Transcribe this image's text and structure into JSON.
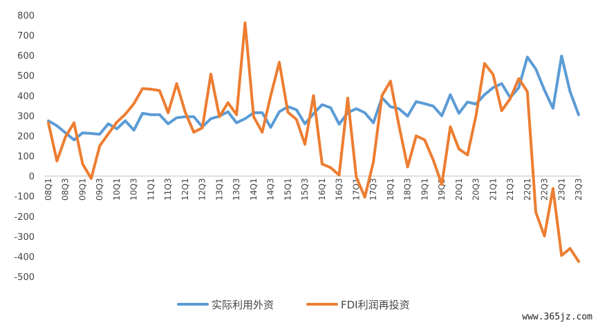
{
  "chart_data": {
    "type": "line",
    "ylim": [
      -500,
      800
    ],
    "yticks": [
      800,
      700,
      600,
      500,
      400,
      300,
      200,
      100,
      0,
      -100,
      -200,
      -300,
      -400,
      -500
    ],
    "grid": false,
    "legend_position": "bottom-center",
    "x": [
      "08Q1",
      "08Q2",
      "08Q3",
      "08Q4",
      "09Q1",
      "09Q2",
      "09Q3",
      "09Q4",
      "10Q1",
      "10Q2",
      "10Q3",
      "10Q4",
      "11Q1",
      "11Q2",
      "11Q3",
      "11Q4",
      "12Q1",
      "12Q2",
      "12Q3",
      "12Q4",
      "13Q1",
      "13Q2",
      "13Q3",
      "13Q4",
      "14Q1",
      "14Q2",
      "14Q3",
      "14Q4",
      "15Q1",
      "15Q2",
      "15Q3",
      "15Q4",
      "16Q1",
      "16Q2",
      "16Q3",
      "16Q4",
      "17Q1",
      "17Q2",
      "17Q3",
      "17Q4",
      "18Q1",
      "18Q2",
      "18Q3",
      "18Q4",
      "19Q1",
      "19Q2",
      "19Q3",
      "19Q4",
      "20Q1",
      "20Q2",
      "20Q3",
      "20Q4",
      "21Q1",
      "21Q2",
      "21Q3",
      "21Q4",
      "22Q1",
      "22Q2",
      "22Q3",
      "22Q4",
      "23Q1",
      "23Q2",
      "23Q3"
    ],
    "tick_labels": [
      "08Q1",
      "08Q3",
      "09Q1",
      "09Q3",
      "10Q1",
      "10Q3",
      "11Q1",
      "11Q3",
      "12Q1",
      "12Q3",
      "13Q1",
      "13Q3",
      "14Q1",
      "14Q3",
      "15Q1",
      "15Q3",
      "16Q1",
      "16Q3",
      "17Q1",
      "17Q3",
      "18Q1",
      "18Q3",
      "19Q1",
      "19Q3",
      "20Q1",
      "20Q3",
      "21Q1",
      "21Q3",
      "22Q1",
      "22Q3",
      "23Q1",
      "23Q3"
    ],
    "series": [
      {
        "name": "实际利用外资",
        "color": "#5B9BD5",
        "values": [
          275,
          250,
          215,
          180,
          215,
          212,
          208,
          260,
          235,
          275,
          228,
          312,
          305,
          305,
          260,
          290,
          295,
          295,
          245,
          285,
          298,
          320,
          265,
          285,
          315,
          315,
          242,
          320,
          345,
          330,
          260,
          310,
          355,
          340,
          258,
          315,
          335,
          315,
          265,
          390,
          345,
          335,
          298,
          370,
          360,
          348,
          300,
          405,
          312,
          368,
          358,
          405,
          440,
          460,
          390,
          440,
          592,
          532,
          428,
          337,
          597,
          420,
          305
        ]
      },
      {
        "name": "FDI利润再投资",
        "color": "#ED7D31",
        "values": [
          265,
          75,
          195,
          265,
          60,
          -12,
          150,
          210,
          268,
          308,
          360,
          435,
          432,
          425,
          315,
          460,
          318,
          218,
          240,
          507,
          295,
          365,
          305,
          762,
          295,
          218,
          400,
          566,
          318,
          282,
          158,
          400,
          60,
          42,
          5,
          388,
          -5,
          -105,
          70,
          400,
          472,
          250,
          45,
          200,
          180,
          80,
          -42,
          245,
          135,
          105,
          300,
          560,
          505,
          325,
          385,
          485,
          420,
          -180,
          -298,
          -62,
          -395,
          -360,
          -425
        ]
      }
    ]
  },
  "watermark": "www.365jz.com"
}
